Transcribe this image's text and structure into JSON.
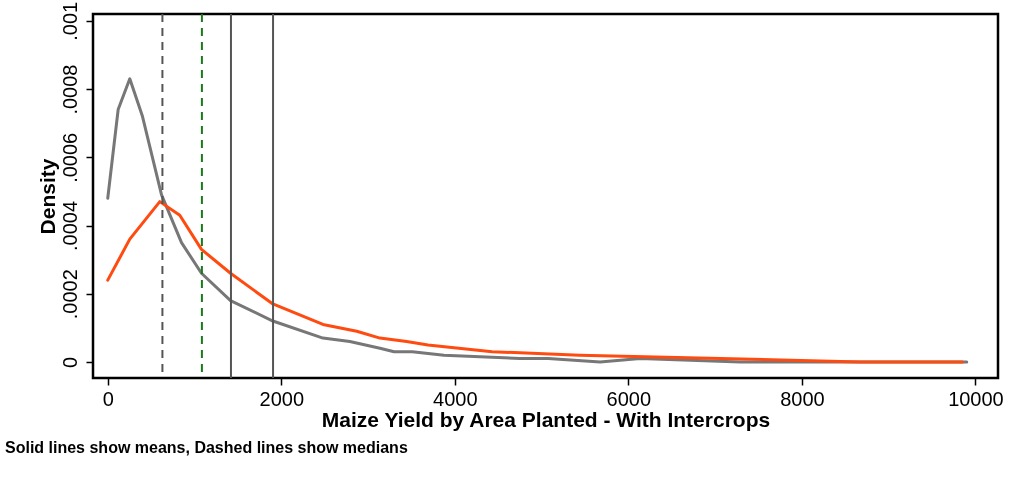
{
  "chart_data": {
    "type": "line",
    "xlabel": "Maize Yield by Area Planted - With Intercrops",
    "ylabel": "Density",
    "annotations": [
      "Solid lines show means, Dashed lines show medians"
    ],
    "xlim": [
      -170,
      10260
    ],
    "xticks": [
      0,
      2000,
      4000,
      6000,
      8000,
      10000
    ],
    "ylim": [
      -4.7e-05,
      0.00102
    ],
    "yticks": [
      0,
      {
        "value": 0.0002,
        "label": ".0002"
      },
      {
        "value": 0.0004,
        "label": ".0004"
      },
      {
        "value": 0.0006,
        "label": ".0006"
      },
      {
        "value": 0.0008,
        "label": ".0008"
      },
      {
        "value": 0.001,
        "label": ".001"
      }
    ],
    "grid": false,
    "line_style": "solid",
    "marker": "none",
    "series": [
      {
        "color": "#777777",
        "x": [
          0,
          120,
          254,
          400,
          620,
          850,
          1080,
          1415,
          1903,
          2480,
          2790,
          3137,
          3300,
          3510,
          3875,
          4750,
          5075,
          5675,
          6135,
          7290,
          8500,
          9900
        ],
        "values": [
          0.00048,
          0.00074,
          0.00083,
          0.00072,
          0.00049,
          0.00035,
          0.00026,
          0.00018,
          0.00012,
          7e-05,
          6e-05,
          4e-05,
          3e-05,
          3e-05,
          2e-05,
          1e-05,
          1e-05,
          0,
          1e-05,
          0,
          0,
          0
        ]
      },
      {
        "color": "#ff4a10",
        "x": [
          0,
          254,
          600,
          830,
          1080,
          1415,
          1903,
          2480,
          2870,
          3137,
          3445,
          3690,
          4430,
          5440,
          7060,
          8670,
          9850
        ],
        "values": [
          0.00024,
          0.00036,
          0.00047,
          0.00043,
          0.00033,
          0.00026,
          0.00017,
          0.00011,
          9e-05,
          7e-05,
          6e-05,
          5e-05,
          3e-05,
          2e-05,
          1e-05,
          0,
          0
        ]
      }
    ],
    "ref_lines": [
      {
        "axis": "x",
        "value": 630,
        "color": "#555555",
        "line_style": "dashed"
      },
      {
        "axis": "x",
        "value": 1085,
        "color": "#1a7a1a",
        "line_style": "dashed"
      },
      {
        "axis": "x",
        "value": 1420,
        "color": "#555555",
        "line_style": "solid"
      },
      {
        "axis": "x",
        "value": 1905,
        "color": "#555555",
        "line_style": "solid"
      }
    ]
  }
}
